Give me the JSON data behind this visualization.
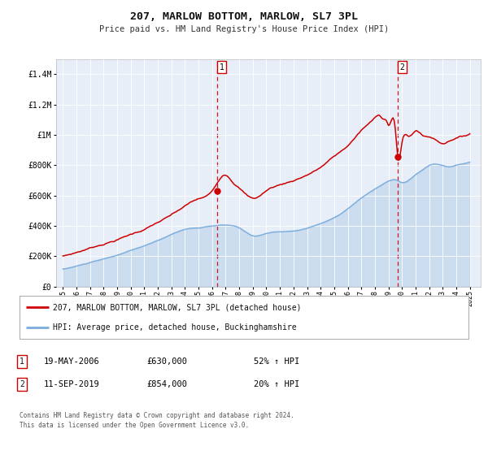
{
  "title": "207, MARLOW BOTTOM, MARLOW, SL7 3PL",
  "subtitle": "Price paid vs. HM Land Registry's House Price Index (HPI)",
  "footer": "Contains HM Land Registry data © Crown copyright and database right 2024.\nThis data is licensed under the Open Government Licence v3.0.",
  "legend_line1": "207, MARLOW BOTTOM, MARLOW, SL7 3PL (detached house)",
  "legend_line2": "HPI: Average price, detached house, Buckinghamshire",
  "sale1_date": "19-MAY-2006",
  "sale1_price": "£630,000",
  "sale1_hpi": "52% ↑ HPI",
  "sale2_date": "11-SEP-2019",
  "sale2_price": "£854,000",
  "sale2_hpi": "20% ↑ HPI",
  "sale1_x": 2006.38,
  "sale1_y": 630000,
  "sale2_x": 2019.69,
  "sale2_y": 854000,
  "hpi_color": "#7aaddc",
  "price_color": "#cc0000",
  "bg_color": "#e8eef8",
  "plot_bg": "#ffffff",
  "dashed_line_color": "#cc0000",
  "ylim": [
    0,
    1500000
  ],
  "yticks": [
    0,
    200000,
    400000,
    600000,
    800000,
    1000000,
    1200000,
    1400000
  ],
  "ytick_labels": [
    "£0",
    "£200K",
    "£400K",
    "£600K",
    "£800K",
    "£1M",
    "£1.2M",
    "£1.4M"
  ],
  "xmin": 1994.5,
  "xmax": 2025.8,
  "xticks": [
    1995,
    1996,
    1997,
    1998,
    1999,
    2000,
    2001,
    2002,
    2003,
    2004,
    2005,
    2006,
    2007,
    2008,
    2009,
    2010,
    2011,
    2012,
    2013,
    2014,
    2015,
    2016,
    2017,
    2018,
    2019,
    2020,
    2021,
    2022,
    2023,
    2024,
    2025
  ]
}
